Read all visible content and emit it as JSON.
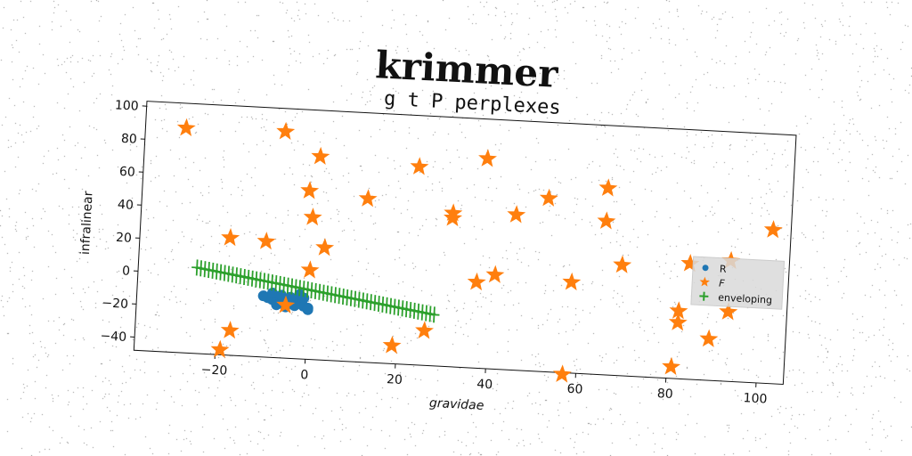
{
  "suptitle": "krimmer",
  "chart_data": {
    "type": "scatter",
    "title": "g t P perplexes",
    "xlabel": "gravidae",
    "ylabel": "infralinear",
    "xlim": [
      -38,
      106
    ],
    "ylim": [
      -48,
      103
    ],
    "xticks": [
      -20,
      0,
      20,
      40,
      60,
      80,
      100
    ],
    "yticks": [
      -40,
      -20,
      0,
      20,
      40,
      60,
      80,
      100
    ],
    "grid": false,
    "legend_position": "center-right",
    "series": [
      {
        "name": "R",
        "marker": "circle",
        "color": "#1f77b4",
        "points": [
          [
            -10,
            -11
          ],
          [
            -9,
            -12
          ],
          [
            -8,
            -13
          ],
          [
            -7,
            -14
          ],
          [
            -6,
            -12
          ],
          [
            -5,
            -15
          ],
          [
            -4,
            -13
          ],
          [
            -3,
            -14
          ],
          [
            -2,
            -12
          ],
          [
            -1,
            -16
          ],
          [
            0,
            -17
          ],
          [
            -8,
            -9
          ],
          [
            -6,
            -10
          ],
          [
            -4,
            -11
          ],
          [
            -2,
            -9
          ],
          [
            -7,
            -16
          ],
          [
            -5,
            -17
          ],
          [
            -3,
            -16
          ],
          [
            -1,
            -11
          ],
          [
            0,
            -18
          ]
        ]
      },
      {
        "name": "F",
        "marker": "star",
        "color": "#ff7f0e",
        "points": [
          [
            -29,
            88
          ],
          [
            -7,
            89
          ],
          [
            1,
            75
          ],
          [
            -1,
            54
          ],
          [
            0,
            38
          ],
          [
            3,
            20
          ],
          [
            0,
            6
          ],
          [
            -10,
            22
          ],
          [
            -18,
            23
          ],
          [
            -17,
            -33
          ],
          [
            -19,
            -45
          ],
          [
            -5,
            -16
          ],
          [
            12,
            51
          ],
          [
            23,
            72
          ],
          [
            31,
            45
          ],
          [
            31,
            42
          ],
          [
            38,
            79
          ],
          [
            45,
            46
          ],
          [
            52,
            57
          ],
          [
            65,
            65
          ],
          [
            65,
            45
          ],
          [
            69,
            19
          ],
          [
            58,
            7
          ],
          [
            41,
            9
          ],
          [
            37,
            4
          ],
          [
            26,
            -27
          ],
          [
            19,
            -37
          ],
          [
            57,
            -49
          ],
          [
            81,
            -41
          ],
          [
            84,
            22
          ],
          [
            93,
            25
          ],
          [
            102,
            45
          ],
          [
            93,
            -6
          ],
          [
            82,
            -7
          ],
          [
            82,
            -14
          ],
          [
            89,
            -23
          ]
        ]
      },
      {
        "name": "enveloping",
        "marker": "plus",
        "color": "#2ca02c",
        "line": [
          [
            -25,
            4
          ],
          [
            28,
            -17
          ]
        ]
      }
    ]
  }
}
